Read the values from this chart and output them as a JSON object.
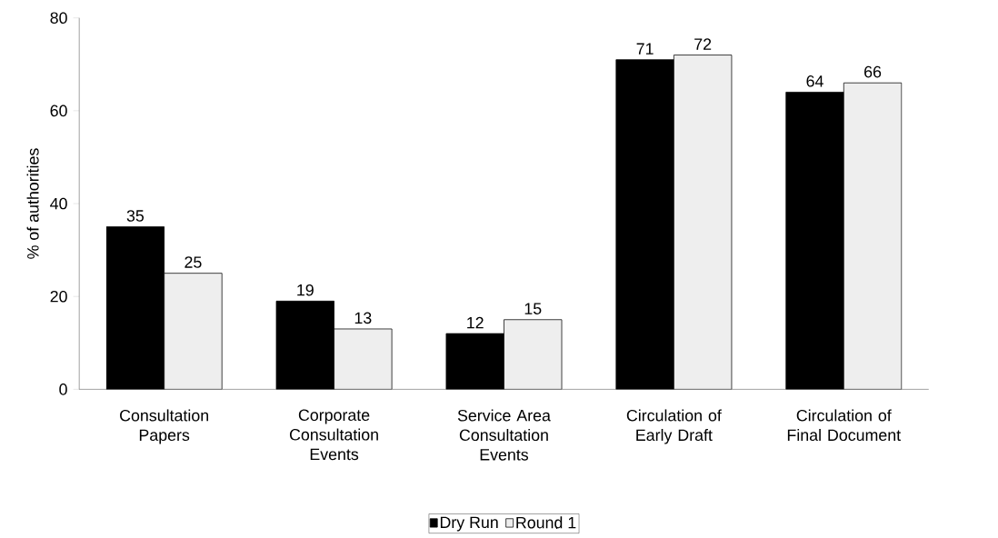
{
  "chart_data": {
    "type": "bar",
    "ylabel": "% of authorities",
    "categories": [
      "Consultation Papers",
      "Corporate Consultation Events",
      "Service Area Consultation Events",
      "Circulation of Early Draft",
      "Circulation of Final Document"
    ],
    "series": [
      {
        "name": "Dry Run",
        "color": "#000000",
        "values": [
          35,
          19,
          12,
          71,
          64
        ]
      },
      {
        "name": "Round 1",
        "color": "#eeeeee",
        "values": [
          25,
          13,
          15,
          72,
          66
        ]
      }
    ],
    "ylim": [
      0,
      80
    ],
    "yticks": [
      0,
      20,
      40,
      60,
      80
    ],
    "grid": false,
    "legend": "bottom",
    "data_labels": true
  }
}
